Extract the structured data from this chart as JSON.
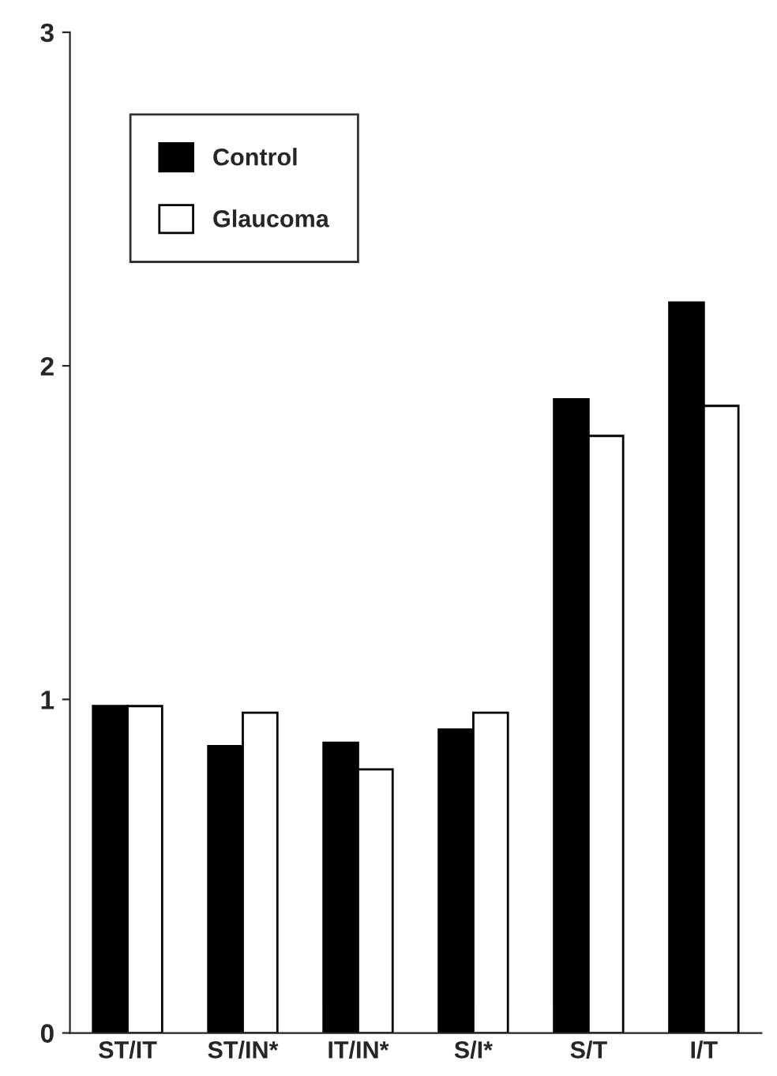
{
  "chart_data": {
    "type": "bar",
    "categories": [
      "ST/IT",
      "ST/IN*",
      "IT/IN*",
      "S/I*",
      "S/T",
      "I/T"
    ],
    "series": [
      {
        "name": "Control",
        "color": "#000000",
        "values": [
          0.98,
          0.86,
          0.87,
          0.91,
          1.9,
          2.19
        ]
      },
      {
        "name": "Glaucoma",
        "color": "#ffffff",
        "values": [
          0.98,
          0.96,
          0.79,
          0.96,
          1.79,
          1.88
        ]
      }
    ],
    "ylim": [
      0,
      3
    ],
    "yticks": [
      0,
      1,
      2,
      3
    ],
    "grid": false,
    "legend": "top left"
  }
}
